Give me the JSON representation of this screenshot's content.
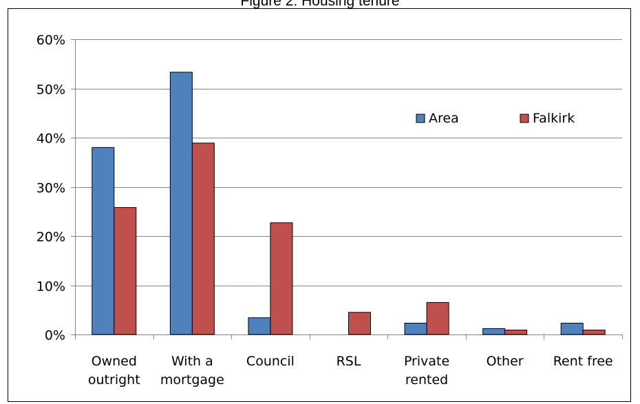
{
  "title": "Figure 2: Housing tenure",
  "colors": {
    "Area": "#4f81bd",
    "Falkirk": "#c0504d",
    "grid": "#868686"
  },
  "chart_data": {
    "type": "bar",
    "title": "Figure 2: Housing tenure",
    "xlabel": "",
    "ylabel": "",
    "ylim": [
      0,
      0.6
    ],
    "yticks": [
      0,
      0.1,
      0.2,
      0.3,
      0.4,
      0.5,
      0.6
    ],
    "ytick_labels": [
      "0%",
      "10%",
      "20%",
      "30%",
      "40%",
      "50%",
      "60%"
    ],
    "grid": true,
    "legend_position": "right",
    "categories": [
      [
        "Owned",
        "outright"
      ],
      [
        "With a",
        "mortgage"
      ],
      [
        "Council"
      ],
      [
        "RSL"
      ],
      [
        "Private",
        "rented"
      ],
      [
        "Other"
      ],
      [
        "Rent free"
      ]
    ],
    "series": [
      {
        "name": "Area",
        "color": "#4f81bd",
        "values": [
          0.38,
          0.533,
          0.034,
          0.0,
          0.023,
          0.012,
          0.023
        ]
      },
      {
        "name": "Falkirk",
        "color": "#c0504d",
        "values": [
          0.258,
          0.389,
          0.227,
          0.045,
          0.065,
          0.009,
          0.009
        ]
      }
    ]
  }
}
